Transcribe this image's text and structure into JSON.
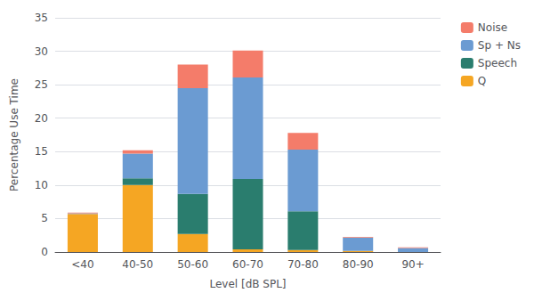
{
  "chart_data": {
    "type": "bar",
    "stacked": true,
    "categories": [
      "<40",
      "40-50",
      "50-60",
      "60-70",
      "70-80",
      "80-90",
      "90+"
    ],
    "series": [
      {
        "name": "Q",
        "color": "#F5A623",
        "values": [
          5.7,
          10.0,
          2.7,
          0.4,
          0.3,
          0.15,
          0.0
        ]
      },
      {
        "name": "Speech",
        "color": "#2A7D6E",
        "values": [
          0.0,
          1.0,
          6.0,
          10.5,
          5.8,
          0.0,
          0.0
        ]
      },
      {
        "name": "Sp + Ns",
        "color": "#6B9BD2",
        "values": [
          0.1,
          3.7,
          15.8,
          15.2,
          9.2,
          2.0,
          0.6
        ]
      },
      {
        "name": "Noise",
        "color": "#F47C6A",
        "values": [
          0.1,
          0.5,
          3.5,
          4.0,
          2.5,
          0.1,
          0.1
        ]
      }
    ],
    "xlabel": "Level [dB SPL]",
    "ylabel": "Percentage Use Time",
    "ylim": [
      0,
      35
    ],
    "yticks": [
      0,
      5,
      10,
      15,
      20,
      25,
      30,
      35
    ],
    "grid": true,
    "legend": "upper right"
  }
}
